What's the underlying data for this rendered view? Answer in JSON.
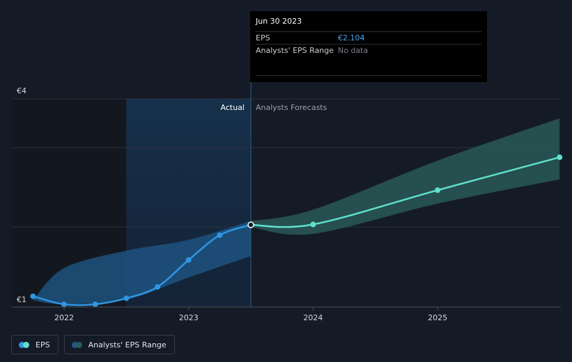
{
  "chart_data": {
    "type": "line",
    "y_ticks": [
      {
        "value": 4,
        "label": "€4"
      },
      {
        "value": 1,
        "label": "€1"
      }
    ],
    "x_ticks": [
      {
        "value": 2022,
        "label": "2022"
      },
      {
        "value": 2023,
        "label": "2023"
      },
      {
        "value": 2024,
        "label": "2024"
      },
      {
        "value": 2025,
        "label": "2025"
      }
    ],
    "xlim": [
      2021.58,
      2025.99
    ],
    "ylim": [
      0.88,
      3.98
    ],
    "grid": true,
    "section_labels": {
      "actual": "Actual",
      "forecast": "Analysts Forecasts"
    },
    "divider_x": 2023.5,
    "shaded_past_from": 2022.5,
    "series": [
      {
        "name": "EPS",
        "color": "#2f96e2",
        "points": [
          {
            "x": 2021.75,
            "y": 1.04
          },
          {
            "x": 2022.0,
            "y": 0.92
          },
          {
            "x": 2022.25,
            "y": 0.92
          },
          {
            "x": 2022.5,
            "y": 1.01
          },
          {
            "x": 2022.75,
            "y": 1.18
          },
          {
            "x": 2023.0,
            "y": 1.58
          },
          {
            "x": 2023.25,
            "y": 1.95
          },
          {
            "x": 2023.5,
            "y": 2.104
          }
        ]
      },
      {
        "name": "EPS",
        "color": "#5fe0cd",
        "points": [
          {
            "x": 2023.5,
            "y": 2.104
          },
          {
            "x": 2024.0,
            "y": 2.11
          },
          {
            "x": 2025.0,
            "y": 2.62
          },
          {
            "x": 2025.98,
            "y": 3.11
          }
        ]
      }
    ],
    "range_band_past": [
      {
        "x": 2021.75,
        "low": 0.98,
        "high": 0.98
      },
      {
        "x": 2022.0,
        "low": 0.92,
        "high": 1.46
      },
      {
        "x": 2022.5,
        "low": 0.99,
        "high": 1.72
      },
      {
        "x": 2023.0,
        "low": 1.32,
        "high": 1.88
      },
      {
        "x": 2023.5,
        "low": 1.64,
        "high": 2.16
      }
    ],
    "range_band_forecast": [
      {
        "x": 2023.5,
        "low": 2.07,
        "high": 2.16
      },
      {
        "x": 2024.0,
        "low": 1.97,
        "high": 2.33
      },
      {
        "x": 2025.0,
        "low": 2.42,
        "high": 3.06
      },
      {
        "x": 2025.98,
        "low": 2.78,
        "high": 3.69
      }
    ]
  },
  "tooltip": {
    "date": "Jun 30 2023",
    "eps_label": "EPS",
    "eps_value": "€2.104",
    "range_label": "Analysts' EPS Range",
    "range_value": "No data"
  },
  "legend": {
    "eps_label": "EPS",
    "range_label": "Analysts' EPS Range"
  },
  "colors": {
    "background": "#151b26",
    "eps_actual": "#2f96e2",
    "eps_forecast": "#5fe0cd",
    "band_past": "#1f5a8a",
    "band_forecast": "#2b5c5a"
  }
}
